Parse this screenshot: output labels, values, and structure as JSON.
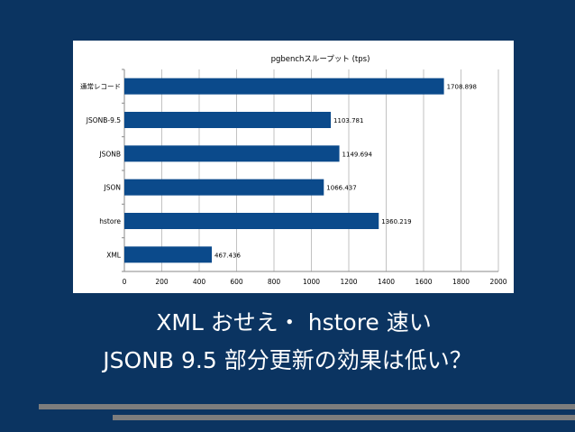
{
  "chart_data": {
    "type": "bar",
    "orientation": "horizontal",
    "title": "pgbenchスループット (tps)",
    "xlabel": "",
    "ylabel": "",
    "categories": [
      "通常レコード",
      "JSONB-9.5",
      "JSONB",
      "JSON",
      "hstore",
      "XML"
    ],
    "values": [
      1708.898,
      1103.781,
      1149.694,
      1066.437,
      1360.219,
      467.436
    ],
    "value_labels": [
      "1708.898",
      "1103.781",
      "1149.694",
      "1066.437",
      "1360.219",
      "467.436"
    ],
    "xlim": [
      0,
      2000
    ],
    "xticks": [
      0,
      200,
      400,
      600,
      800,
      1000,
      1200,
      1400,
      1600,
      1800,
      2000
    ],
    "grid": true,
    "legend": "none",
    "bar_color": "#0b4a8b"
  },
  "captions": {
    "line1": "XML おせえ・ hstore 速い",
    "line2": "JSONB 9.5 部分更新の効果は低い？"
  },
  "colors": {
    "background": "#0b3461",
    "bar": "#0b4a8b",
    "decor_bars": "#7d7d7d"
  }
}
